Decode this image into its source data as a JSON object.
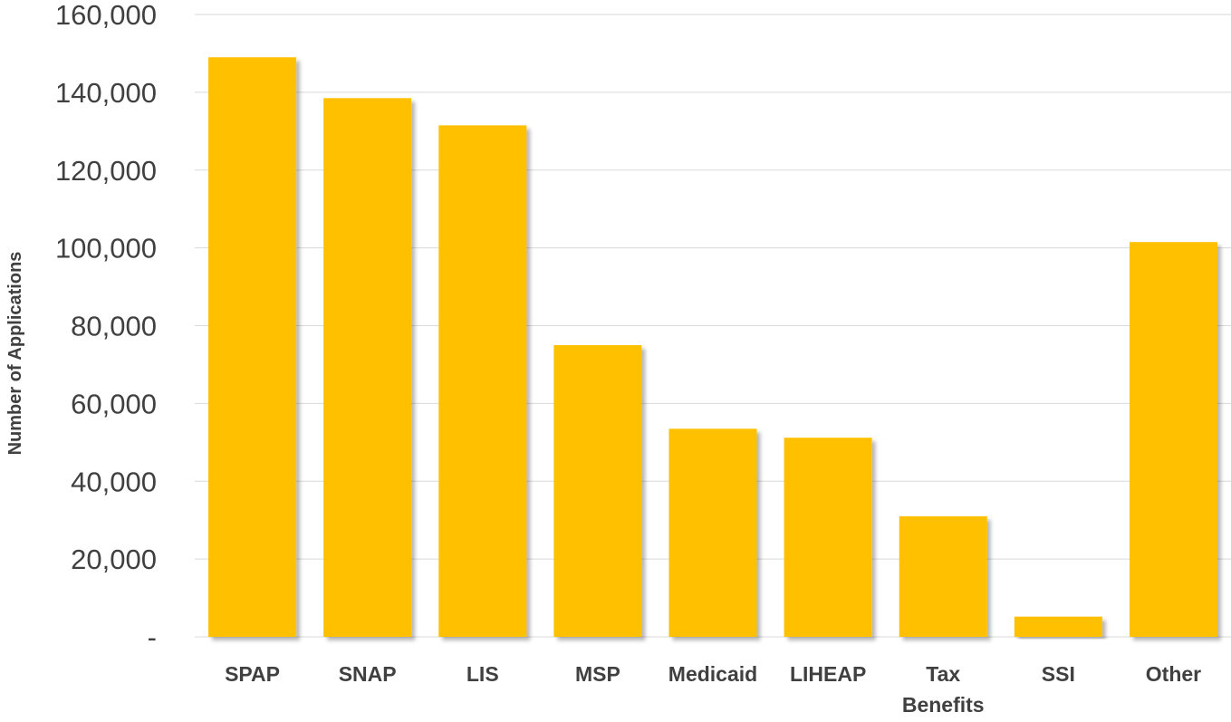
{
  "chart_data": {
    "type": "bar",
    "title": "",
    "xlabel": "",
    "ylabel": "Number of Applications",
    "ylim": [
      0,
      160000
    ],
    "yticks": [
      0,
      20000,
      40000,
      60000,
      80000,
      100000,
      120000,
      140000,
      160000
    ],
    "ytick_labels": [
      "-",
      "20,000",
      "40,000",
      "60,000",
      "80,000",
      "100,000",
      "120,000",
      "140,000",
      "160,000"
    ],
    "categories": [
      "SPAP",
      "SNAP",
      "LIS",
      "MSP",
      "Medicaid",
      "LIHEAP",
      "Tax Benefits",
      "SSI",
      "Other"
    ],
    "category_labels": [
      [
        "SPAP"
      ],
      [
        "SNAP"
      ],
      [
        "LIS"
      ],
      [
        "MSP"
      ],
      [
        "Medicaid"
      ],
      [
        "LIHEAP"
      ],
      [
        "Tax",
        "Benefits"
      ],
      [
        "SSI"
      ],
      [
        "Other"
      ]
    ],
    "values": [
      149000,
      138500,
      131500,
      75000,
      53500,
      51200,
      31000,
      5200,
      101500
    ],
    "grid": true,
    "legend": "none",
    "colors": {
      "bar": "#FFC000",
      "grid": "#D9D9D9",
      "text": "#404040"
    }
  }
}
